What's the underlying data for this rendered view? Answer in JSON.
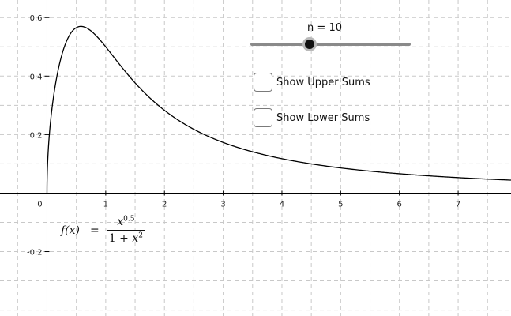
{
  "graph": {
    "x_ticks": [
      "0",
      "1",
      "2",
      "3",
      "4",
      "5",
      "6",
      "7"
    ],
    "y_ticks": [
      "0.6",
      "0.4",
      "0.2",
      "-0.2"
    ],
    "function": {
      "lhs": "f(x)",
      "expression": "x^0.5 / (1 + x^2)"
    },
    "view_range": {
      "x": [
        -0.8,
        7.9
      ],
      "y": [
        -0.42,
        0.66
      ]
    }
  },
  "slider": {
    "name": "n",
    "value": 10,
    "min": 1,
    "max": 30,
    "fill_fraction": 0.37
  },
  "checkboxes": [
    {
      "label": "Show Upper Sums",
      "checked": false
    },
    {
      "label": "Show Lower Sums",
      "checked": false
    }
  ],
  "formula": {
    "lhs": "f(x)",
    "equals": "=",
    "numerator_base": "x",
    "numerator_exp": "0.5",
    "denominator_const": "1 + ",
    "denominator_var": "x",
    "denominator_exp": "2"
  },
  "colors": {
    "grid": "#c8c8c8",
    "axis": "#000000",
    "curve": "#000000",
    "slider_track": "#8a8a8a"
  }
}
